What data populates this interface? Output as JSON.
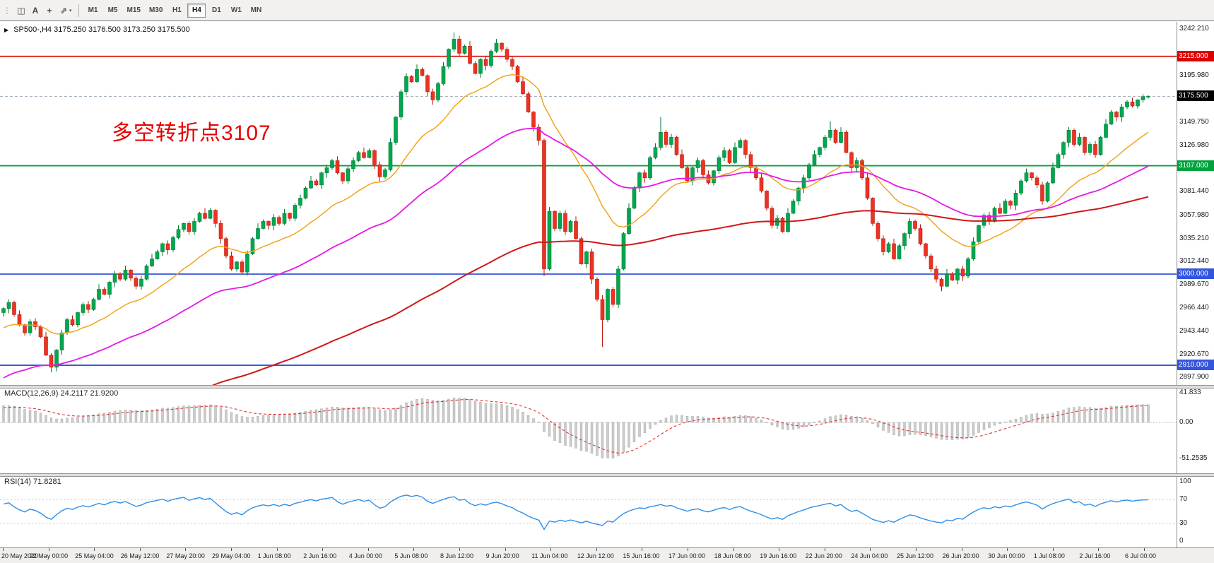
{
  "toolbar": {
    "handle": "⋮",
    "icons": [
      {
        "name": "chart-bars-icon",
        "glyph": "◫"
      },
      {
        "name": "text-tool-icon",
        "glyph": "A"
      },
      {
        "name": "crosshair-icon",
        "glyph": "+"
      },
      {
        "name": "arrows-tool-icon",
        "glyph": "⇗",
        "caret": "▾"
      }
    ],
    "timeframes": [
      "M1",
      "M5",
      "M15",
      "M30",
      "H1",
      "H4",
      "D1",
      "W1",
      "MN"
    ],
    "active_timeframe": "H4"
  },
  "main_chart": {
    "marker": "▶",
    "symbol_label": "SP500-,H4",
    "ohlc_label": "3175.250 3176.500 3173.250 3175.500",
    "annotation": {
      "text": "多空转折点3107",
      "color": "#e60000"
    }
  },
  "indicators": {
    "macd": {
      "name": "MACD(12,26,9)",
      "values": "24.2117 21.9200",
      "axis_labels": [
        "41.833",
        "0.00",
        "-51.2535"
      ]
    },
    "rsi": {
      "name": "RSI(14)",
      "values": "71.8281",
      "axis_labels": [
        "100",
        "70",
        "30",
        "0"
      ]
    }
  },
  "price_axis": {
    "tick_labels": [
      "3242.210",
      "3195.980",
      "3149.750",
      "3126.980",
      "3081.440",
      "3057.980",
      "3035.210",
      "3012.440",
      "2989.670",
      "2966.440",
      "2943.440",
      "2920.670",
      "2897.900"
    ],
    "badges": [
      {
        "label": "3215.000",
        "price": 3215.0,
        "bg": "#dd0000"
      },
      {
        "label": "3175.500",
        "price": 3175.5,
        "bg": "#000000"
      },
      {
        "label": "3107.000",
        "price": 3107.0,
        "bg": "#00a23d"
      },
      {
        "label": "3000.000",
        "price": 3000.0,
        "bg": "#3355dd"
      },
      {
        "label": "2910.000",
        "price": 2910.0,
        "bg": "#3355dd"
      }
    ]
  },
  "time_axis": {
    "labels": [
      "20 May 2020",
      "22 May 00:00",
      "25 May 04:00",
      "26 May 12:00",
      "27 May 20:00",
      "29 May 04:00",
      "1 Jun 08:00",
      "2 Jun 16:00",
      "4 Jun 00:00",
      "5 Jun 08:00",
      "8 Jun 12:00",
      "9 Jun 20:00",
      "11 Jun 04:00",
      "12 Jun 12:00",
      "15 Jun 16:00",
      "17 Jun 00:00",
      "18 Jun 08:00",
      "19 Jun 16:00",
      "22 Jun 20:00",
      "24 Jun 04:00",
      "25 Jun 12:00",
      "26 Jun 20:00",
      "30 Jun 00:00",
      "1 Jul 08:00",
      "2 Jul 16:00",
      "6 Jul 00:00"
    ]
  },
  "chart_data": {
    "type": "candlestick",
    "title": "SP500- H4",
    "last_price": 3175.5,
    "open_first": 2962,
    "closes": [
      2966,
      2972,
      2960,
      2950,
      2942,
      2953,
      2948,
      2938,
      2920,
      2908,
      2925,
      2942,
      2955,
      2950,
      2962,
      2970,
      2965,
      2975,
      2985,
      2980,
      2992,
      3000,
      2995,
      3004,
      2996,
      2988,
      2995,
      3008,
      3015,
      3022,
      3030,
      3024,
      3036,
      3044,
      3050,
      3042,
      3052,
      3060,
      3055,
      3063,
      3050,
      3035,
      3018,
      3005,
      3012,
      3002,
      3020,
      3035,
      3045,
      3052,
      3048,
      3056,
      3050,
      3060,
      3055,
      3068,
      3075,
      3085,
      3092,
      3088,
      3100,
      3105,
      3112,
      3100,
      3092,
      3104,
      3112,
      3120,
      3115,
      3122,
      3108,
      3096,
      3103,
      3130,
      3155,
      3180,
      3195,
      3190,
      3202,
      3196,
      3180,
      3172,
      3188,
      3205,
      3222,
      3232,
      3218,
      3225,
      3208,
      3198,
      3212,
      3206,
      3220,
      3228,
      3222,
      3212,
      3205,
      3190,
      3178,
      3160,
      3145,
      3132,
      3005,
      3062,
      3045,
      3060,
      3042,
      3052,
      3035,
      3010,
      3022,
      2995,
      2975,
      2955,
      2985,
      2970,
      3005,
      3040,
      3065,
      3085,
      3100,
      3095,
      3115,
      3125,
      3140,
      3128,
      3135,
      3118,
      3105,
      3092,
      3105,
      3112,
      3098,
      3090,
      3102,
      3115,
      3122,
      3110,
      3125,
      3132,
      3118,
      3105,
      3095,
      3082,
      3065,
      3048,
      3055,
      3042,
      3060,
      3072,
      3085,
      3095,
      3108,
      3118,
      3125,
      3135,
      3142,
      3130,
      3140,
      3120,
      3105,
      3112,
      3095,
      3075,
      3050,
      3035,
      3022,
      3030,
      3015,
      3028,
      3040,
      3052,
      3045,
      3030,
      3018,
      3005,
      2995,
      2988,
      3000,
      2994,
      3005,
      2998,
      3015,
      3032,
      3048,
      3058,
      3052,
      3065,
      3060,
      3072,
      3068,
      3080,
      3092,
      3100,
      3095,
      3088,
      3072,
      3090,
      3105,
      3118,
      3130,
      3142,
      3128,
      3135,
      3120,
      3128,
      3118,
      3135,
      3148,
      3160,
      3155,
      3165,
      3170,
      3166,
      3172,
      3175.25,
      3175.5
    ],
    "wick_overrides": {
      "9": {
        "lo": 2903
      },
      "85": {
        "hi": 3238.5
      },
      "102": {
        "lo": 2998
      },
      "113": {
        "lo": 2928
      },
      "124": {
        "hi": 3155
      },
      "156": {
        "hi": 3151
      },
      "177": {
        "lo": 2983
      },
      "216": {
        "hi": 3176.5,
        "lo": 3173.25
      }
    },
    "hlines": [
      {
        "price": 3215.0,
        "color": "#dd0000",
        "width": 1.6
      },
      {
        "price": 3175.5,
        "color": "#9aa7b8",
        "width": 1,
        "dash": "4 3"
      },
      {
        "price": 3107.0,
        "color": "#00a23d",
        "width": 1.8
      },
      {
        "price": 3000.0,
        "color": "#3355dd",
        "width": 1.8
      },
      {
        "price": 2910.0,
        "color": "#3355dd",
        "width": 1.8
      }
    ],
    "moving_averages": [
      {
        "period": 21,
        "color": "#f2a51c",
        "seed": 2945,
        "width": 1.5
      },
      {
        "period": 55,
        "color": "#e618e6",
        "seed": 2895,
        "width": 1.8
      },
      {
        "period": 150,
        "color": "#d01818",
        "seed": 2815,
        "width": 2
      }
    ],
    "candle_colors": {
      "up": "#00a84f",
      "up_edge": "#007a36",
      "down": "#ec3323",
      "down_edge": "#bb1d10"
    },
    "macd_params": {
      "fast": 12,
      "slow": 26,
      "signal": 9,
      "seed_fast": 2945,
      "seed_slow": 2921,
      "seed_signal": 20,
      "hist_color": "#cccccc",
      "signal_color": "#e03333",
      "y_max": 41.833,
      "y_min": -51.2535
    },
    "rsi_params": {
      "period": 14,
      "color": "#2f8fe8",
      "levels": [
        70,
        30
      ],
      "seed_gain": 5,
      "seed_loss": 3,
      "last_value": 71.8281
    },
    "price_range": {
      "axis_top": 3245.5,
      "axis_bottom": 2890.5
    }
  }
}
